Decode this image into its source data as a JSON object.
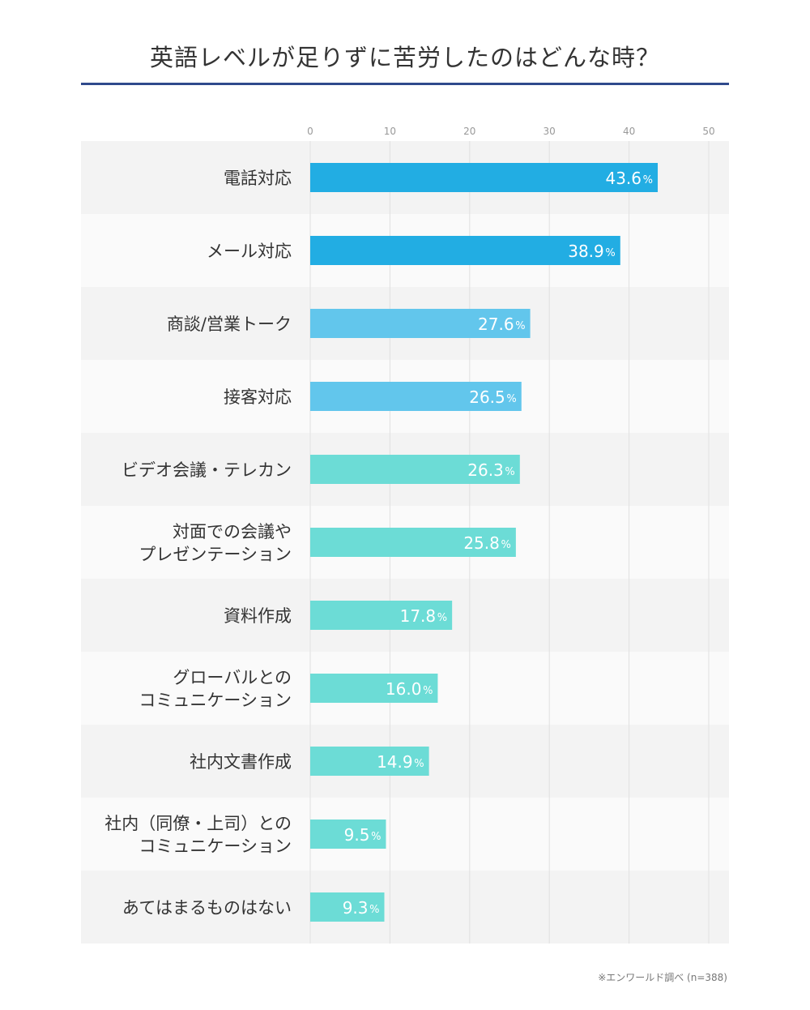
{
  "title": "英語レベルが足りずに苦労したのはどんな時？",
  "source_note": "※エンワールド調べ (n=388)",
  "colors": {
    "rule": "#2f4a8c",
    "top": "#22ade3",
    "mid": "#62c6ec",
    "rest": "#6cdcd6",
    "band_dark": "#f3f3f3",
    "band_light": "#fafafa",
    "grid": "#e0e0e0"
  },
  "chart_data": {
    "type": "bar",
    "orientation": "horizontal",
    "title": "英語レベルが足りずに苦労したのはどんな時？",
    "xlim": [
      0,
      50
    ],
    "ticks": [
      "0",
      "10",
      "20",
      "30",
      "40",
      "50"
    ],
    "value_suffix": "%",
    "grid": true,
    "categories": [
      [
        "電話対応"
      ],
      [
        "メール対応"
      ],
      [
        "商談/営業トーク"
      ],
      [
        "接客対応"
      ],
      [
        "ビデオ会議・テレカン"
      ],
      [
        "対面での会議や",
        "プレゼンテーション"
      ],
      [
        "資料作成"
      ],
      [
        "グローバルとの",
        "コミュニケーション"
      ],
      [
        "社内文書作成"
      ],
      [
        "社内（同僚・上司）との",
        "コミュニケーション"
      ],
      [
        "あてはまるものはない"
      ]
    ],
    "values": [
      43.6,
      38.9,
      27.6,
      26.5,
      26.3,
      25.8,
      17.8,
      16.0,
      14.9,
      9.5,
      9.3
    ],
    "value_labels": [
      "43.6",
      "38.9",
      "27.6",
      "26.5",
      "26.3",
      "25.8",
      "17.8",
      "16.0",
      "14.9",
      "9.5",
      "9.3"
    ],
    "color_groups": [
      "top",
      "top",
      "mid",
      "mid",
      "rest",
      "rest",
      "rest",
      "rest",
      "rest",
      "rest",
      "rest"
    ]
  }
}
